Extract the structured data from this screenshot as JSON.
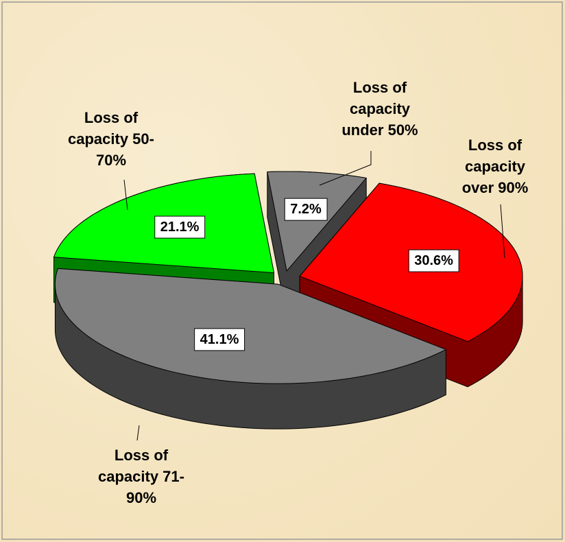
{
  "chart_data": {
    "type": "pie3d",
    "categories": [
      "Loss of capacity under 50%",
      "Loss of capacity over 90%",
      "Loss of capacity 71-90%",
      "Loss of capacity 50-70%"
    ],
    "values": [
      7.2,
      30.6,
      41.1,
      21.1
    ],
    "value_labels": [
      "7.2%",
      "30.6%",
      "41.1%",
      "21.1%"
    ],
    "colors": [
      "#808080",
      "#ff0000",
      "#808080",
      "#00ff00"
    ],
    "exploded": true
  }
}
